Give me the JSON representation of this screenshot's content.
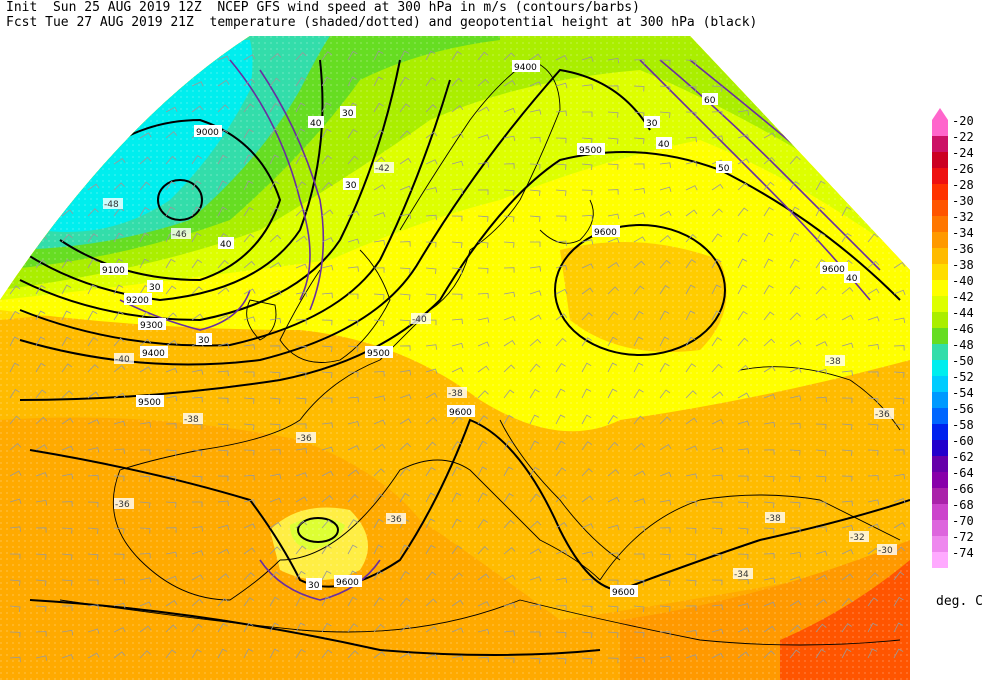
{
  "header": {
    "line1": "Init  Sun 25 AUG 2019 12Z  NCEP GFS wind speed at 300 hPa in m/s (contours/barbs)",
    "line2": "Fcst Tue 27 AUG 2019 21Z  temperature (shaded/dotted) and geopotential height at 300 hPa (black)"
  },
  "colorbar": {
    "unit": "deg. C",
    "entries": [
      {
        "label": "-20",
        "color": "#ff66cc"
      },
      {
        "label": "-22",
        "color": "#cc1166"
      },
      {
        "label": "-24",
        "color": "#cc0022"
      },
      {
        "label": "-26",
        "color": "#ee1111"
      },
      {
        "label": "-28",
        "color": "#ff3300"
      },
      {
        "label": "-30",
        "color": "#ff5500"
      },
      {
        "label": "-32",
        "color": "#ff7700"
      },
      {
        "label": "-34",
        "color": "#ff9900"
      },
      {
        "label": "-36",
        "color": "#ffbb00"
      },
      {
        "label": "-38",
        "color": "#ffdd00"
      },
      {
        "label": "-40",
        "color": "#ffff00"
      },
      {
        "label": "-42",
        "color": "#ddff00"
      },
      {
        "label": "-44",
        "color": "#aaee00"
      },
      {
        "label": "-46",
        "color": "#66dd22"
      },
      {
        "label": "-48",
        "color": "#33ddaa"
      },
      {
        "label": "-50",
        "color": "#00eeee"
      },
      {
        "label": "-52",
        "color": "#00ccff"
      },
      {
        "label": "-54",
        "color": "#0099ff"
      },
      {
        "label": "-56",
        "color": "#0066ff"
      },
      {
        "label": "-58",
        "color": "#0022ee"
      },
      {
        "label": "-60",
        "color": "#2200cc"
      },
      {
        "label": "-62",
        "color": "#6600aa"
      },
      {
        "label": "-64",
        "color": "#8800aa"
      },
      {
        "label": "-66",
        "color": "#aa22aa"
      },
      {
        "label": "-68",
        "color": "#cc44cc"
      },
      {
        "label": "-70",
        "color": "#dd66dd"
      },
      {
        "label": "-72",
        "color": "#ee88ee"
      },
      {
        "label": "-74",
        "color": "#ffaaff"
      }
    ]
  },
  "height_labels": [
    "9000",
    "9100",
    "9200",
    "9300",
    "9400",
    "9400",
    "9500",
    "9500",
    "9500",
    "9600",
    "9600",
    "9600",
    "9600",
    "9600"
  ],
  "wind_labels": [
    "30",
    "30",
    "30",
    "30",
    "40",
    "40",
    "40",
    "40",
    "50",
    "60",
    "30",
    "30"
  ],
  "temp_labels": [
    "-48",
    "-46",
    "-42",
    "-40",
    "-38",
    "-38",
    "-36",
    "-36",
    "-36",
    "-38",
    "-34",
    "-32",
    "-30",
    "-40",
    "-36",
    "-38"
  ]
}
